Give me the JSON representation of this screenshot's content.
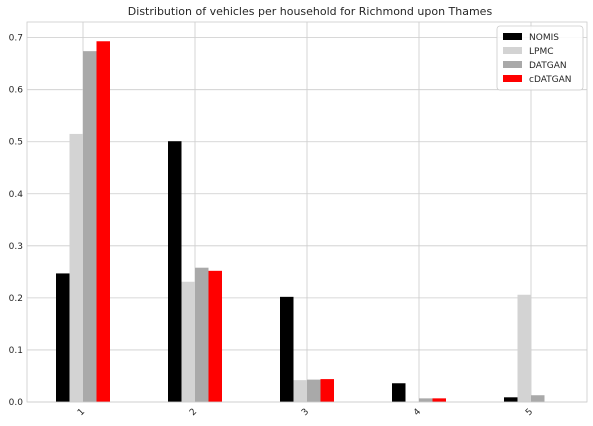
{
  "chart_data": {
    "type": "bar",
    "title": "Distribution of vehicles per household for Richmond upon Thames",
    "xlabel": "",
    "ylabel": "",
    "categories": [
      "1",
      "2",
      "3",
      "4",
      "5"
    ],
    "ylim": [
      0,
      0.73
    ],
    "yticks": [
      "0.0",
      "0.1",
      "0.2",
      "0.3",
      "0.4",
      "0.5",
      "0.6",
      "0.7"
    ],
    "grid": true,
    "legend_position": "top-right",
    "series": [
      {
        "name": "NOMIS",
        "color": "#000000",
        "values": [
          0.247,
          0.501,
          0.202,
          0.036,
          0.009
        ]
      },
      {
        "name": "LPMC",
        "color": "#d3d3d3",
        "values": [
          0.515,
          0.231,
          0.042,
          0.0,
          0.206
        ]
      },
      {
        "name": "DATGAN",
        "color": "#a9a9a9",
        "values": [
          0.674,
          0.258,
          0.043,
          0.007,
          0.013
        ]
      },
      {
        "name": "cDATGAN",
        "color": "#ff0000",
        "values": [
          0.693,
          0.252,
          0.044,
          0.007,
          0.0
        ]
      }
    ]
  }
}
